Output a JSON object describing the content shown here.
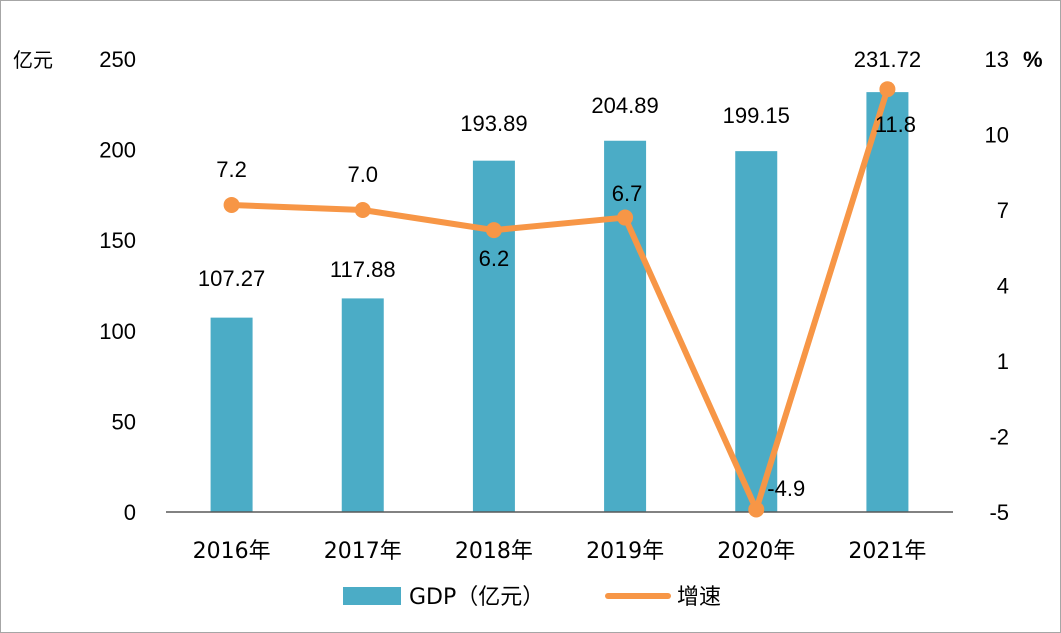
{
  "chart_data": {
    "type": "bar",
    "categories": [
      "2016年",
      "2017年",
      "2018年",
      "2019年",
      "2020年",
      "2021年"
    ],
    "series": [
      {
        "name": "GDP（亿元）",
        "type": "bar",
        "axis": "left",
        "color": "#4bacc6",
        "values": [
          107.27,
          117.88,
          193.89,
          204.89,
          199.15,
          231.72
        ],
        "labels": [
          "107.27",
          "117.88",
          "193.89",
          "204.89",
          "199.15",
          "231.72"
        ]
      },
      {
        "name": "增速",
        "type": "line",
        "axis": "right",
        "color": "#f79646",
        "values": [
          7.2,
          7.0,
          6.2,
          6.7,
          -4.9,
          11.8
        ],
        "labels": [
          "7.2",
          "7.0",
          "6.2",
          "6.7",
          "-4.9",
          "11.8"
        ]
      }
    ],
    "y_left": {
      "unit": "亿元",
      "ylim": [
        0,
        250
      ],
      "ticks": [
        "0",
        "50",
        "100",
        "150",
        "200",
        "250"
      ]
    },
    "y_right": {
      "unit": "%",
      "ylim": [
        -5,
        13
      ],
      "ticks": [
        "-5",
        "-2",
        "1",
        "4",
        "7",
        "10",
        "13"
      ]
    },
    "grid": false,
    "legend_position": "bottom"
  }
}
